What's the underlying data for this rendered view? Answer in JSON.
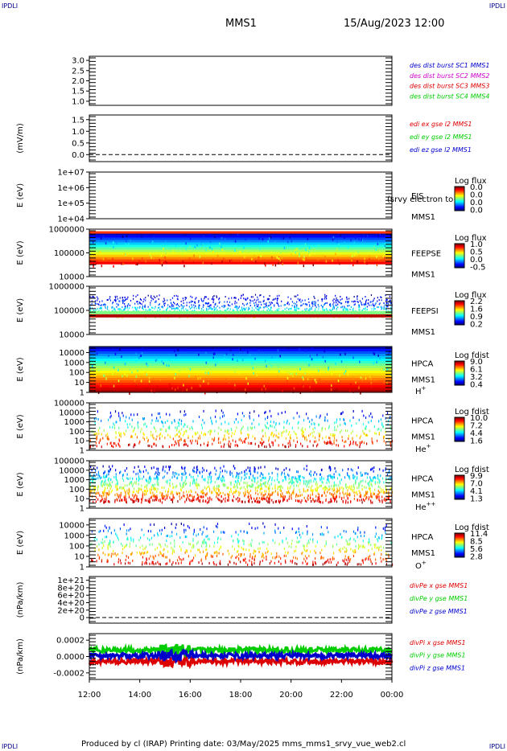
{
  "header": {
    "corner_left": "IPDLI",
    "corner_right": "IPDLI",
    "corner_bottom_left": "IPDLI",
    "corner_bottom_right": "IPDLI",
    "mission": "MMS1",
    "datetime": "15/Aug/2023 12:00"
  },
  "footer": {
    "text": "Produced by cl (IRAP)   Printing date: 03/May/2025   mms_mms1_srvy_vue_web2.cl"
  },
  "colors": {
    "blue": "#0000cc",
    "magenta": "#cc00cc",
    "red": "#dd0000",
    "green": "#00cc00",
    "black": "#000000"
  },
  "chart_data": [
    {
      "type": "line",
      "id": "des-dist",
      "ylabel": "",
      "ylim": [
        0.8,
        3.2
      ],
      "yticks": [
        "3.0",
        "2.5",
        "2.0",
        "1.5",
        "1.0"
      ],
      "ytick_values": [
        3.0,
        2.5,
        2.0,
        1.5,
        1.0
      ],
      "series": [],
      "legend": [
        {
          "text": "des dist burst SC1 MMS1",
          "color": "blue"
        },
        {
          "text": "des dist burst SC2 MMS2",
          "color": "magenta"
        },
        {
          "text": "des dist burst SC3 MMS3",
          "color": "red"
        },
        {
          "text": "des dist burst SC4 MMS4",
          "color": "green"
        }
      ]
    },
    {
      "type": "line",
      "id": "edi-e",
      "ylabel": "(mV/m)",
      "ylim": [
        -0.3,
        1.7
      ],
      "yticks": [
        "1.5",
        "1.0",
        "0.5",
        "0.0"
      ],
      "ytick_values": [
        1.5,
        1.0,
        0.5,
        0.0
      ],
      "zero_line": true,
      "series": [],
      "legend": [
        {
          "text": "edi ex gse l2 MMS1",
          "color": "red"
        },
        {
          "text": "edi ey gse l2 MMS1",
          "color": "green"
        },
        {
          "text": "edi ez gse l2 MMS1",
          "color": "blue"
        }
      ]
    },
    {
      "type": "heatmap",
      "id": "eis",
      "ylabel": "E (eV)",
      "log_y": true,
      "yticks": [
        "1e+07",
        "1e+06",
        "1e+05",
        "1e+04"
      ],
      "ytick_values": [
        10000000,
        1000000,
        100000,
        10000
      ],
      "ylim": [
        10000,
        10000000
      ],
      "instrument": [
        "EIS",
        "MMS1"
      ],
      "overlay_text": "(srvy electron to",
      "colorbar": {
        "label": "Log flux",
        "ticks": [
          "0.0",
          "0.0",
          "0.0",
          "0.0"
        ]
      },
      "band": null
    },
    {
      "type": "heatmap",
      "id": "feepse",
      "ylabel": "E (eV)",
      "log_y": true,
      "yticks": [
        "1000000",
        "100000",
        "10000"
      ],
      "ytick_values": [
        1000000,
        100000,
        10000
      ],
      "ylim": [
        10000,
        1000000
      ],
      "instrument": [
        "FEEPSE",
        "MMS1"
      ],
      "colorbar": {
        "label": "Log flux",
        "ticks": [
          "1.0",
          "0.5",
          "0.0",
          "-0.5"
        ]
      },
      "band": {
        "e_min": 30000,
        "e_max": 700000,
        "style": "electron"
      }
    },
    {
      "type": "heatmap",
      "id": "feepsi",
      "ylabel": "E (eV)",
      "log_y": true,
      "yticks": [
        "1000000",
        "100000",
        "10000"
      ],
      "ytick_values": [
        1000000,
        100000,
        10000
      ],
      "ylim": [
        10000,
        1000000
      ],
      "instrument": [
        "FEEPSI",
        "MMS1"
      ],
      "colorbar": {
        "label": "Log flux",
        "ticks": [
          "2.2",
          "1.6",
          "0.9",
          "0.2"
        ]
      },
      "band": {
        "e_min": 55000,
        "e_max": 500000,
        "style": "ion"
      }
    },
    {
      "type": "heatmap",
      "id": "hpca-h",
      "ylabel": "E (eV)",
      "log_y": true,
      "yticks": [
        "10000",
        "1000",
        "100",
        "10",
        "1"
      ],
      "ytick_values": [
        10000,
        1000,
        100,
        10,
        1
      ],
      "ylim": [
        1,
        40000
      ],
      "instrument": [
        "HPCA",
        "MMS1"
      ],
      "species": "H",
      "species_sup": "+",
      "colorbar": {
        "label": "Log fdist",
        "ticks": [
          "9.0",
          "6.1",
          "3.2",
          "0.4"
        ]
      },
      "band": {
        "e_min": 1,
        "e_max": 40000,
        "style": "dense"
      }
    },
    {
      "type": "heatmap",
      "id": "hpca-he",
      "ylabel": "E (eV)",
      "log_y": true,
      "yticks": [
        "100000",
        "10000",
        "1000",
        "100",
        "10",
        "1"
      ],
      "ytick_values": [
        100000,
        10000,
        1000,
        100,
        10,
        1
      ],
      "ylim": [
        1,
        100000
      ],
      "instrument": [
        "HPCA",
        "MMS1"
      ],
      "species": "He",
      "species_sup": "+",
      "colorbar": {
        "label": "Log fdist",
        "ticks": [
          "10.0",
          "7.2",
          "4.4",
          "1.6"
        ]
      },
      "band": {
        "e_min": 3,
        "e_max": 20000,
        "style": "sparse"
      }
    },
    {
      "type": "heatmap",
      "id": "hpca-hepp",
      "ylabel": "E (eV)",
      "log_y": true,
      "yticks": [
        "100000",
        "10000",
        "1000",
        "100",
        "10",
        "1"
      ],
      "ytick_values": [
        100000,
        10000,
        1000,
        100,
        10,
        1
      ],
      "ylim": [
        1,
        100000
      ],
      "instrument": [
        "HPCA",
        "MMS1"
      ],
      "species": "He",
      "species_sup": "++",
      "colorbar": {
        "label": "Log fdist",
        "ticks": [
          "9.9",
          "7.0",
          "4.1",
          "1.3"
        ]
      },
      "band": {
        "e_min": 5,
        "e_max": 40000,
        "style": "medium"
      }
    },
    {
      "type": "heatmap",
      "id": "hpca-o",
      "ylabel": "E (eV)",
      "log_y": true,
      "yticks": [
        "10000",
        "1000",
        "100",
        "10",
        "1"
      ],
      "ytick_values": [
        10000,
        1000,
        100,
        10,
        1
      ],
      "ylim": [
        1,
        40000
      ],
      "instrument": [
        "HPCA",
        "MMS1"
      ],
      "species": "O",
      "species_sup": "+",
      "colorbar": {
        "label": "Log fdist",
        "ticks": [
          "11.4",
          "8.5",
          "5.6",
          "2.8"
        ]
      },
      "band": {
        "e_min": 2,
        "e_max": 20000,
        "style": "sparse2"
      }
    },
    {
      "type": "line",
      "id": "divpe",
      "ylabel": "(nPa/km)",
      "ylim": [
        -1.5e+20,
        1.1e+21
      ],
      "yticks": [
        "1e+21",
        "8e+20",
        "6e+20",
        "4e+20",
        "2e+20",
        "0"
      ],
      "ytick_values": [
        1e+21,
        8e+20,
        6e+20,
        4e+20,
        2e+20,
        0
      ],
      "zero_line": true,
      "series": [],
      "legend": [
        {
          "text": "divPe x gse MMS1",
          "color": "red"
        },
        {
          "text": "divPe y gse MMS1",
          "color": "green"
        },
        {
          "text": "divPe z gse MMS1",
          "color": "blue"
        }
      ]
    },
    {
      "type": "line",
      "id": "divpi",
      "ylabel": "(nPa/km)",
      "ylim": [
        -0.00028,
        0.00028
      ],
      "yticks": [
        "0.0002",
        "0.0000",
        "-0.0002"
      ],
      "ytick_values": [
        0.0002,
        0.0,
        -0.0002
      ],
      "series": [
        {
          "name": "divPi x gse MMS1",
          "color": "red",
          "mean": -6e-05,
          "spread": 3e-05
        },
        {
          "name": "divPi y gse MMS1",
          "color": "green",
          "mean": 8e-05,
          "spread": 3e-05
        },
        {
          "name": "divPi z gse MMS1",
          "color": "blue",
          "mean": 1e-05,
          "spread": 3e-05
        }
      ],
      "legend": [
        {
          "text": "divPi x gse MMS1",
          "color": "red"
        },
        {
          "text": "divPi y gse MMS1",
          "color": "green"
        },
        {
          "text": "divPi z gse MMS1",
          "color": "blue"
        }
      ]
    }
  ],
  "time_axis": {
    "labels": [
      "12:00",
      "14:00",
      "16:00",
      "18:00",
      "20:00",
      "22:00",
      "00:00"
    ],
    "range_hours": [
      12,
      24
    ]
  }
}
